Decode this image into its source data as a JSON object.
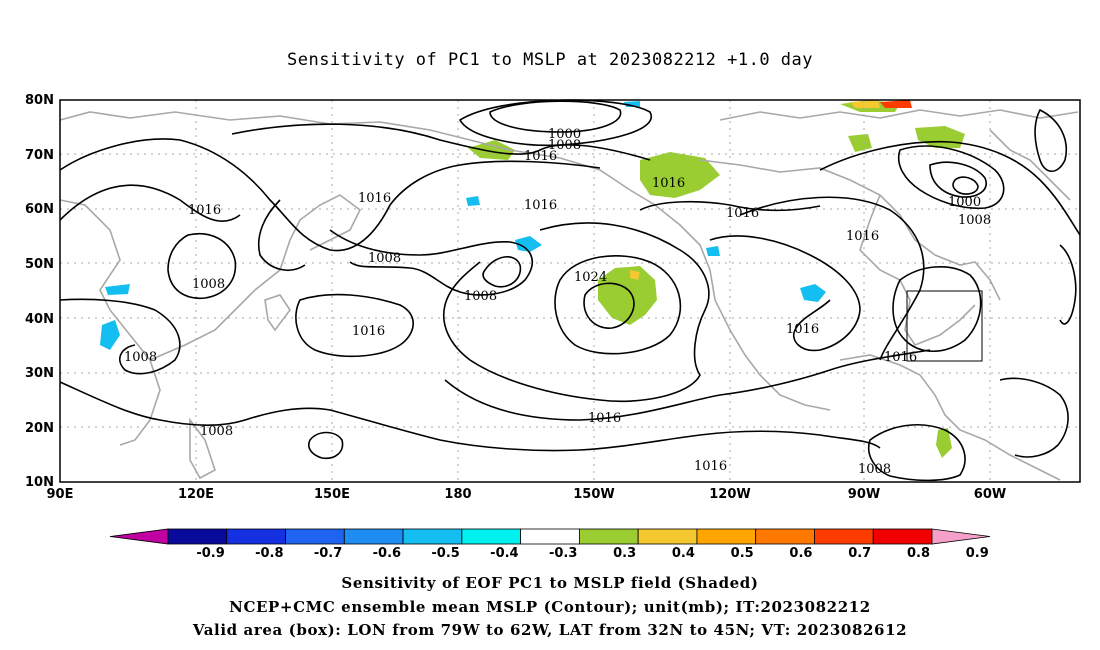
{
  "title": "Sensitivity of PC1 to MSLP at 2023082212 +1.0 day",
  "lat_labels": [
    "80N",
    "70N",
    "60N",
    "50N",
    "40N",
    "30N",
    "20N",
    "10N"
  ],
  "lon_labels": [
    "90E",
    "120E",
    "150E",
    "180",
    "150W",
    "120W",
    "90W",
    "60W"
  ],
  "contour_labels": [
    "1000",
    "1008",
    "1016",
    "1016",
    "1016",
    "1016",
    "1008",
    "1008",
    "1016",
    "1024",
    "1016",
    "1016",
    "1016",
    "1000",
    "1008",
    "1016",
    "1008",
    "1008",
    "1016",
    "1016",
    "1008",
    "1016",
    "1008"
  ],
  "colorbar": {
    "labels": [
      "-0.9",
      "-0.8",
      "-0.7",
      "-0.6",
      "-0.5",
      "-0.4",
      "-0.3",
      "0.3",
      "0.4",
      "0.5",
      "0.6",
      "0.7",
      "0.8",
      "0.9"
    ],
    "colors": [
      "#c000a0",
      "#0a0a9a",
      "#1530e0",
      "#1e64f0",
      "#1e8cf0",
      "#14bef0",
      "#00f0f0",
      "#ffffff",
      "#9acd32",
      "#f5c832",
      "#ffa500",
      "#ff7800",
      "#ff3c00",
      "#f00000",
      "#f4a0c8"
    ]
  },
  "footer": {
    "line1": "Sensitivity of EOF PC1 to MSLP field (Shaded)",
    "line2": "NCEP+CMC ensemble mean MSLP (Contour); unit(mb); IT:2023082212",
    "line3": "Valid area (box): LON from 79W to 62W, LAT from 32N to 45N; VT: 2023082612"
  }
}
